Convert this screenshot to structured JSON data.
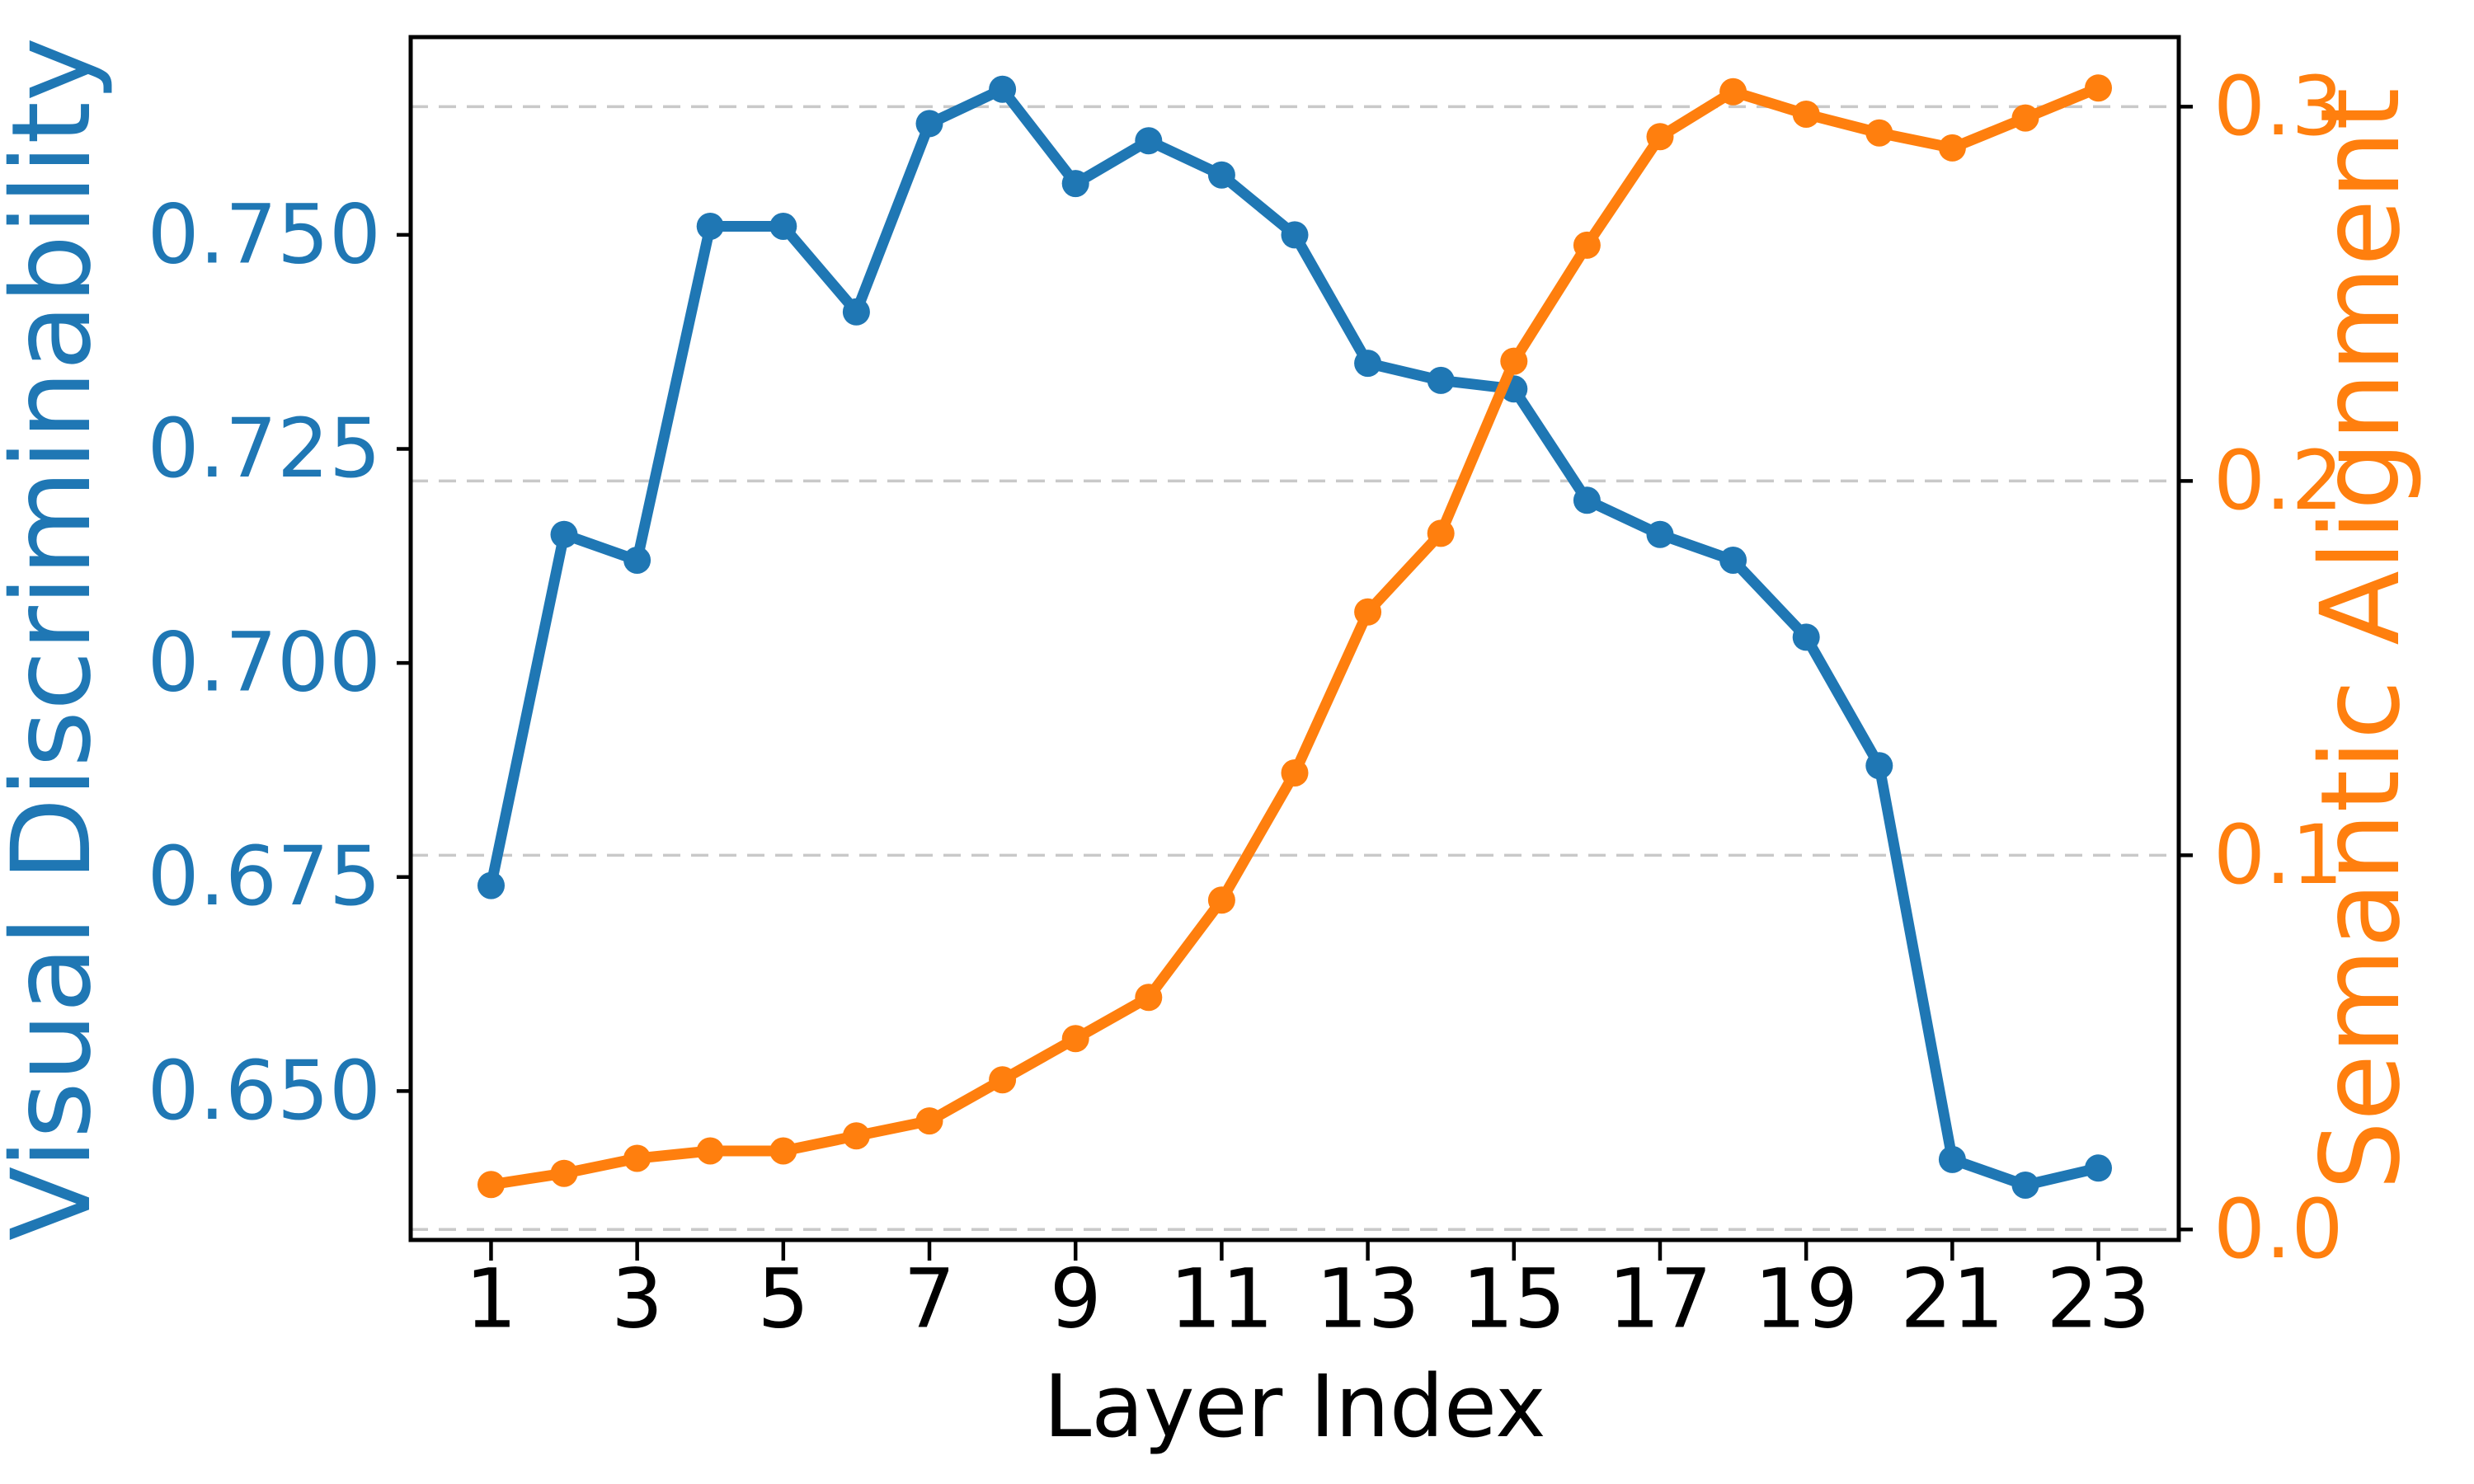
{
  "chart_data": {
    "type": "line",
    "title": "",
    "xlabel": "Layer Index",
    "x": [
      1,
      2,
      3,
      4,
      5,
      6,
      7,
      8,
      9,
      10,
      11,
      12,
      13,
      14,
      15,
      16,
      17,
      18,
      19,
      20,
      21,
      22,
      23
    ],
    "xticks": [
      1,
      3,
      5,
      7,
      9,
      11,
      13,
      15,
      17,
      19,
      21,
      23
    ],
    "xlim": [
      -0.1,
      24.1
    ],
    "grid": "horizontal dashed gridlines at right-axis ticks",
    "legend_position": "none",
    "series": [
      {
        "name": "Visual Discriminability",
        "axis": "left",
        "color": "#1f77b4",
        "marker": "circle",
        "values": [
          0.674,
          0.715,
          0.712,
          0.751,
          0.751,
          0.741,
          0.763,
          0.767,
          0.756,
          0.761,
          0.757,
          0.75,
          0.735,
          0.733,
          0.732,
          0.719,
          0.715,
          0.712,
          0.703,
          0.688,
          0.642,
          0.639,
          0.641
        ]
      },
      {
        "name": "Semantic Alignment",
        "axis": "right",
        "color": "#ff7f0e",
        "marker": "circle",
        "values": [
          0.012,
          0.015,
          0.019,
          0.021,
          0.021,
          0.025,
          0.029,
          0.04,
          0.051,
          0.062,
          0.088,
          0.122,
          0.165,
          0.186,
          0.232,
          0.263,
          0.292,
          0.304,
          0.298,
          0.293,
          0.289,
          0.297,
          0.305
        ]
      }
    ],
    "left_axis": {
      "label": "Visual Discriminability",
      "color": "#1f77b4",
      "ticks": [
        0.65,
        0.675,
        0.7,
        0.725,
        0.75
      ],
      "tick_labels": [
        "0.650",
        "0.675",
        "0.700",
        "0.725",
        "0.750"
      ],
      "ylim": [
        0.6326,
        0.7731
      ]
    },
    "right_axis": {
      "label": "Semantic Alignment",
      "color": "#ff7f0e",
      "ticks": [
        0.0,
        0.1,
        0.2,
        0.3
      ],
      "tick_labels": [
        "0.0",
        "0.1",
        "0.2",
        "0.3"
      ],
      "ylim": [
        -0.0028,
        0.3186
      ]
    },
    "colors": {
      "spine": "#000000",
      "gridline": "#c9c9c9",
      "x_tick_label": "#000000"
    }
  }
}
